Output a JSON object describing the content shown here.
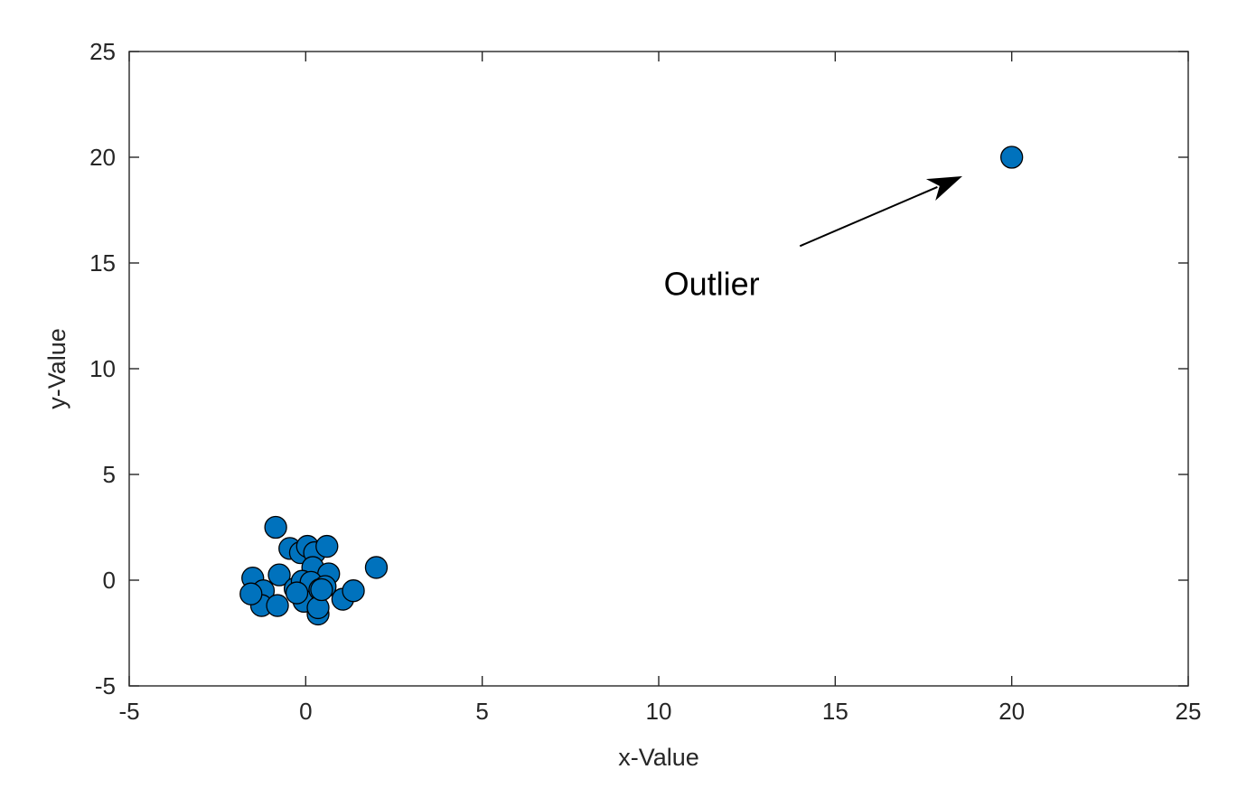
{
  "chart_data": {
    "type": "scatter",
    "title": "",
    "xlabel": "x-Value",
    "ylabel": "y-Value",
    "xlim": [
      -5,
      25
    ],
    "ylim": [
      -5,
      25
    ],
    "xticks": [
      -5,
      0,
      5,
      10,
      15,
      20,
      25
    ],
    "yticks": [
      -5,
      0,
      5,
      10,
      15,
      20,
      25
    ],
    "xtick_labels": [
      "-5",
      "0",
      "5",
      "10",
      "15",
      "20",
      "25"
    ],
    "ytick_labels": [
      "-5",
      "0",
      "5",
      "10",
      "15",
      "20",
      "25"
    ],
    "grid": false,
    "marker_color": "#0072BD",
    "marker_edge_color": "#000000",
    "series": [
      {
        "x": [
          -0.85,
          -0.45,
          -0.15,
          0.05,
          0.25,
          0.6,
          -1.5,
          -0.75,
          0.2,
          0.65,
          2.0,
          -1.2,
          -0.3,
          -0.1,
          0.15,
          0.55,
          0.3,
          1.05,
          1.35,
          -1.25,
          -0.8,
          -0.05,
          0.35,
          -1.55,
          0.4,
          0.35,
          -0.25,
          0.45
        ],
        "y": [
          2.5,
          1.5,
          1.3,
          1.6,
          1.3,
          1.6,
          0.1,
          0.25,
          0.6,
          0.3,
          0.6,
          -0.5,
          -0.4,
          -0.05,
          -0.1,
          -0.3,
          -1.2,
          -0.9,
          -0.5,
          -1.2,
          -1.2,
          -1.0,
          -1.6,
          -0.65,
          -0.45,
          -1.3,
          -0.6,
          -0.45
        ]
      },
      {
        "x": [
          20
        ],
        "y": [
          20
        ]
      }
    ],
    "annotations": [
      {
        "text": "Outlier",
        "text_x": 11.5,
        "text_y": 14.0,
        "arrow_from": [
          14.0,
          15.8
        ],
        "arrow_to": [
          18.6,
          19.1
        ]
      }
    ]
  }
}
